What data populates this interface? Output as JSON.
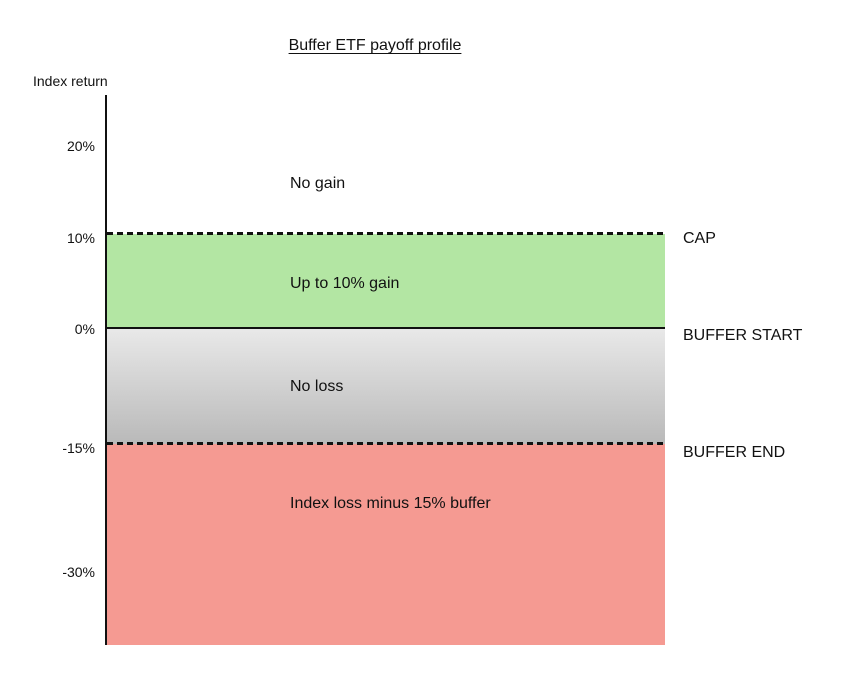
{
  "chart": {
    "title": "Buffer ETF payoff profile",
    "axis_label": "Index return",
    "ticks": {
      "t20": "20%",
      "t10": "10%",
      "t0": "0%",
      "tm15": "-15%",
      "tm30": "-30%"
    },
    "zones": {
      "no_gain": "No gain",
      "gain": "Up to 10% gain",
      "no_loss": "No loss",
      "loss": "Index loss minus 15% buffer"
    },
    "thresholds": {
      "cap": "CAP",
      "buffer_start": "BUFFER START",
      "buffer_end": "BUFFER END"
    }
  },
  "colors": {
    "gain_zone": "#b3e6a3",
    "loss_zone": "#f59a92",
    "no_loss_zone_top": "#e9e9e9",
    "no_loss_zone_bottom": "#b9b9b9",
    "line": "#111111",
    "background": "#ffffff"
  },
  "chart_data": {
    "type": "area",
    "title": "Buffer ETF payoff profile",
    "xlabel": "",
    "ylabel": "Index return",
    "y_tick_labels": [
      "20%",
      "10%",
      "0%",
      "-15%",
      "-30%"
    ],
    "y_tick_values": [
      20,
      10,
      0,
      -15,
      -30
    ],
    "ylim": [
      -38,
      25
    ],
    "grid": false,
    "legend": false,
    "zones": [
      {
        "label": "No gain",
        "from_pct": 10,
        "to_pct": 25,
        "fill": "#ffffff"
      },
      {
        "label": "Up to 10% gain",
        "from_pct": 0,
        "to_pct": 10,
        "fill": "#b3e6a3"
      },
      {
        "label": "No loss",
        "from_pct": -15,
        "to_pct": 0,
        "fill": "linear-gradient(#e9e9e9,#b9b9b9)"
      },
      {
        "label": "Index loss minus 15% buffer",
        "from_pct": -38,
        "to_pct": -15,
        "fill": "#f59a92"
      }
    ],
    "reference_lines": [
      {
        "label": "CAP",
        "value_pct": 10,
        "style": "dashed"
      },
      {
        "label": "BUFFER START",
        "value_pct": 0,
        "style": "solid"
      },
      {
        "label": "BUFFER END",
        "value_pct": -15,
        "style": "dashed"
      }
    ]
  }
}
